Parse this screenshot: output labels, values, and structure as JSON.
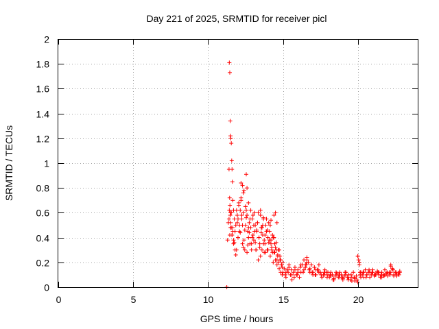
{
  "chart_data": {
    "type": "scatter",
    "title": "Day 221 of 2025, SRMTID for receiver picl",
    "xlabel": "GPS time / hours",
    "ylabel": "SRMTID / TECUs",
    "xlim": [
      0,
      24
    ],
    "ylim": [
      0,
      2
    ],
    "xticks": [
      0,
      5,
      10,
      15,
      20
    ],
    "xtick_labels": [
      "0",
      "5",
      "10",
      "15",
      "20"
    ],
    "yticks": [
      0,
      0.2,
      0.4,
      0.6,
      0.8,
      1,
      1.2,
      1.4,
      1.6,
      1.8,
      2
    ],
    "ytick_labels": [
      "0",
      "0.2",
      "0.4",
      "0.6",
      "0.8",
      "1",
      "1.2",
      "1.4",
      "1.6",
      "1.8",
      "2"
    ],
    "grid": true,
    "marker": "+",
    "color": "#ff0000",
    "series": [
      {
        "name": "SRMTID",
        "x": [
          11.25,
          11.3,
          11.35,
          11.4,
          11.42,
          11.45,
          11.48,
          11.5,
          11.52,
          11.55,
          11.58,
          11.6,
          11.62,
          11.65,
          11.7,
          11.75,
          11.8,
          11.85,
          11.9,
          11.95,
          12.0,
          12.05,
          12.1,
          12.15,
          12.2,
          12.25,
          12.3,
          12.35,
          12.4,
          12.45,
          12.5,
          12.55,
          12.6,
          12.65,
          12.7,
          12.75,
          12.8,
          12.85,
          12.9,
          12.95,
          13.0,
          13.05,
          13.1,
          13.15,
          13.2,
          13.25,
          13.3,
          13.35,
          13.4,
          13.45,
          13.5,
          13.55,
          13.6,
          13.65,
          13.7,
          13.75,
          13.8,
          13.85,
          13.9,
          13.95,
          14.0,
          14.05,
          14.1,
          14.15,
          14.2,
          14.25,
          14.3,
          14.35,
          14.4,
          14.45,
          14.5,
          14.55,
          14.6,
          14.65,
          14.7,
          14.75,
          14.8,
          14.85,
          14.9,
          14.95,
          15.0,
          15.1,
          15.2,
          15.3,
          15.4,
          15.5,
          15.6,
          15.7,
          15.8,
          15.9,
          16.0,
          16.1,
          16.2,
          16.3,
          16.4,
          16.5,
          16.6,
          16.7,
          16.8,
          16.9,
          17.0,
          17.1,
          17.2,
          17.3,
          17.4,
          17.5,
          17.6,
          17.7,
          17.8,
          17.9,
          18.0,
          18.1,
          18.2,
          18.3,
          18.4,
          18.5,
          18.6,
          18.7,
          18.8,
          18.9,
          19.0,
          19.1,
          19.2,
          19.3,
          19.4,
          19.5,
          19.6,
          19.7,
          19.8,
          19.9,
          20.0,
          20.05,
          20.1,
          20.15,
          20.2,
          20.3,
          20.4,
          20.5,
          20.6,
          20.7,
          20.8,
          20.9,
          21.0,
          21.1,
          21.2,
          21.3,
          21.4,
          21.5,
          21.6,
          21.7,
          21.8,
          21.9,
          22.0,
          22.1,
          22.2,
          22.3,
          22.4,
          22.5,
          22.6,
          22.7,
          22.8,
          11.5,
          11.6,
          11.7,
          11.8,
          11.9,
          12.0,
          12.1,
          12.2,
          12.3,
          12.4,
          12.5,
          12.6,
          12.7,
          12.8,
          12.9,
          13.0,
          13.1,
          13.2,
          13.3,
          13.4,
          13.5,
          13.6,
          13.7,
          13.8,
          13.9,
          14.0,
          14.1,
          14.2,
          14.3,
          14.4,
          14.5,
          14.6,
          14.7,
          14.8,
          14.9,
          15.0,
          15.2,
          15.4,
          15.6,
          15.8,
          16.0,
          16.2,
          16.4,
          16.6,
          16.8,
          17.0,
          17.2,
          17.4,
          17.6,
          17.8,
          18.0,
          18.2,
          18.4,
          18.6,
          18.8,
          19.0,
          19.2,
          19.4,
          19.6,
          19.8,
          20.0,
          20.2,
          20.4,
          20.6,
          20.8,
          21.0,
          21.2,
          21.4,
          21.6,
          21.8,
          22.0,
          22.2,
          22.4,
          22.6,
          22.8,
          11.45,
          11.55,
          11.65,
          11.75,
          11.85,
          11.95,
          12.05,
          12.15,
          12.25,
          12.35,
          12.45,
          12.55,
          12.65,
          12.75,
          12.85,
          12.95,
          13.05,
          13.15,
          13.25,
          13.35,
          13.45,
          13.55,
          13.65,
          13.75,
          13.85,
          13.95,
          14.05,
          14.15,
          14.25,
          14.35,
          14.45,
          14.55,
          14.65,
          14.75,
          14.85,
          14.95,
          15.15,
          15.35,
          15.55,
          15.75,
          15.95,
          16.15,
          16.35,
          16.55,
          16.75,
          16.95,
          17.15,
          17.35,
          17.55,
          17.75,
          17.95,
          18.15,
          18.35,
          18.55,
          18.75,
          18.95,
          19.15,
          19.35,
          19.55,
          19.75,
          19.95,
          20.15,
          20.35,
          20.55,
          20.75,
          20.95,
          21.15,
          21.35,
          21.55,
          21.75,
          21.95,
          22.15,
          22.35,
          22.55,
          22.75,
          11.4,
          11.42,
          11.44,
          11.46,
          11.48,
          11.5,
          11.52,
          11.55,
          11.6,
          11.65,
          11.7,
          12.2,
          12.3,
          12.35,
          12.5,
          12.55,
          12.6,
          12.7,
          13.5,
          13.7,
          14.5,
          14.6,
          16.5,
          16.6,
          20.0,
          20.1,
          22.2,
          22.3,
          14.2,
          14.4
        ],
        "y": [
          0.0,
          0.38,
          0.52,
          0.55,
          1.81,
          1.73,
          1.34,
          1.22,
          1.2,
          1.16,
          1.02,
          0.95,
          0.85,
          0.7,
          0.62,
          0.55,
          0.45,
          0.5,
          0.3,
          0.58,
          0.4,
          0.68,
          0.5,
          0.62,
          0.84,
          0.55,
          0.35,
          0.6,
          0.78,
          0.3,
          0.5,
          0.62,
          0.58,
          0.45,
          0.4,
          0.52,
          0.35,
          0.48,
          0.3,
          0.55,
          0.42,
          0.38,
          0.6,
          0.5,
          0.3,
          0.45,
          0.52,
          0.22,
          0.4,
          0.35,
          0.58,
          0.48,
          0.3,
          0.42,
          0.55,
          0.28,
          0.35,
          0.5,
          0.45,
          0.3,
          0.4,
          0.52,
          0.38,
          0.25,
          0.35,
          0.3,
          0.42,
          0.2,
          0.28,
          0.35,
          0.22,
          0.3,
          0.18,
          0.25,
          0.2,
          0.15,
          0.22,
          0.12,
          0.18,
          0.1,
          0.12,
          0.15,
          0.08,
          0.14,
          0.18,
          0.1,
          0.06,
          0.12,
          0.16,
          0.1,
          0.14,
          0.08,
          0.12,
          0.18,
          0.22,
          0.16,
          0.24,
          0.2,
          0.15,
          0.18,
          0.12,
          0.16,
          0.1,
          0.14,
          0.18,
          0.12,
          0.08,
          0.1,
          0.14,
          0.12,
          0.1,
          0.08,
          0.12,
          0.1,
          0.06,
          0.09,
          0.11,
          0.08,
          0.12,
          0.1,
          0.07,
          0.09,
          0.12,
          0.08,
          0.1,
          0.06,
          0.08,
          0.12,
          0.05,
          0.09,
          0.25,
          0.22,
          0.18,
          0.12,
          0.08,
          0.1,
          0.12,
          0.14,
          0.1,
          0.12,
          0.08,
          0.1,
          0.12,
          0.09,
          0.11,
          0.13,
          0.1,
          0.08,
          0.12,
          0.1,
          0.14,
          0.11,
          0.09,
          0.12,
          0.18,
          0.15,
          0.1,
          0.12,
          0.09,
          0.11,
          0.13,
          0.48,
          0.42,
          0.35,
          0.3,
          0.62,
          0.55,
          0.45,
          0.72,
          0.5,
          0.38,
          0.65,
          0.28,
          0.48,
          0.55,
          0.35,
          0.58,
          0.45,
          0.3,
          0.52,
          0.4,
          0.25,
          0.48,
          0.35,
          0.42,
          0.55,
          0.3,
          0.45,
          0.38,
          0.28,
          0.4,
          0.32,
          0.22,
          0.3,
          0.25,
          0.18,
          0.2,
          0.12,
          0.16,
          0.1,
          0.14,
          0.12,
          0.18,
          0.14,
          0.2,
          0.12,
          0.1,
          0.14,
          0.12,
          0.08,
          0.1,
          0.12,
          0.09,
          0.07,
          0.1,
          0.08,
          0.06,
          0.1,
          0.08,
          0.05,
          0.07,
          0.04,
          0.12,
          0.08,
          0.1,
          0.12,
          0.14,
          0.1,
          0.12,
          0.08,
          0.1,
          0.11,
          0.12,
          0.09,
          0.1,
          0.12,
          0.42,
          0.6,
          0.48,
          0.36,
          0.26,
          0.52,
          0.66,
          0.44,
          0.58,
          0.32,
          0.46,
          0.56,
          0.34,
          0.44,
          0.62,
          0.4,
          0.5,
          0.36,
          0.46,
          0.6,
          0.32,
          0.44,
          0.5,
          0.38,
          0.28,
          0.46,
          0.36,
          0.5,
          0.32,
          0.4,
          0.28,
          0.36,
          0.26,
          0.3,
          0.22,
          0.16,
          0.1,
          0.12,
          0.14,
          0.08,
          0.1,
          0.16,
          0.12,
          0.18,
          0.14,
          0.12,
          0.1,
          0.14,
          0.1,
          0.12,
          0.08,
          0.1,
          0.06,
          0.12,
          0.1,
          0.08,
          0.12,
          0.06,
          0.1,
          0.08,
          0.06,
          0.1,
          0.12,
          0.08,
          0.14,
          0.12,
          0.1,
          0.12,
          0.1,
          0.09,
          0.12,
          0.1,
          0.14,
          0.12,
          0.1,
          0.95,
          0.62,
          0.72,
          0.66,
          0.58,
          0.6,
          0.52,
          0.48,
          0.42,
          0.45,
          0.38,
          0.7,
          0.82,
          0.76,
          0.65,
          0.91,
          0.8,
          0.68,
          0.62,
          0.56,
          0.6,
          0.52,
          0.18,
          0.22,
          0.25,
          0.2,
          0.17,
          0.15,
          0.54,
          0.58
        ]
      }
    ]
  }
}
